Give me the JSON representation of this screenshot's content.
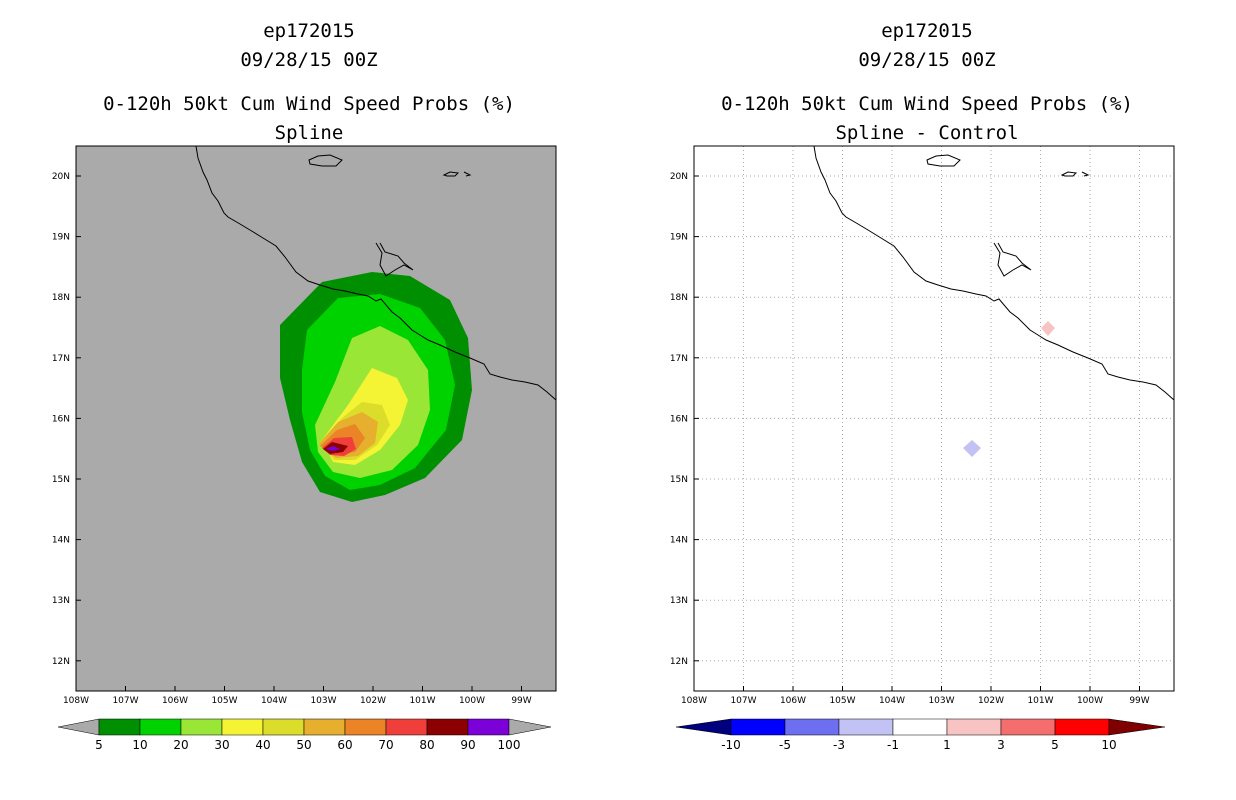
{
  "left": {
    "storm_id": "ep172015",
    "date": "09/28/15 00Z",
    "product": "0-120h 50kt Cum Wind Speed Probs (%)",
    "subtitle": "Spline",
    "lat_labels": [
      "20N",
      "19N",
      "18N",
      "17N",
      "16N",
      "15N",
      "14N",
      "13N",
      "12N"
    ],
    "lon_labels": [
      "108W",
      "107W",
      "106W",
      "105W",
      "104W",
      "103W",
      "102W",
      "101W",
      "100W",
      "99W"
    ],
    "colorbar": {
      "labels": [
        "5",
        "10",
        "20",
        "30",
        "40",
        "50",
        "60",
        "70",
        "80",
        "90",
        "100"
      ],
      "colors": [
        "#008f00",
        "#00d200",
        "#99e636",
        "#f4f435",
        "#dcdc2b",
        "#e6af2d",
        "#eb8327",
        "#f03f3a",
        "#8b0000",
        "#7c00d8"
      ],
      "extend_color": "#aaaaaa"
    }
  },
  "right": {
    "storm_id": "ep172015",
    "date": "09/28/15 00Z",
    "product": "0-120h 50kt Cum Wind Speed Probs (%)",
    "subtitle": "Spline - Control",
    "lat_labels": [
      "20N",
      "19N",
      "18N",
      "17N",
      "16N",
      "15N",
      "14N",
      "13N",
      "12N"
    ],
    "lon_labels": [
      "108W",
      "107W",
      "106W",
      "105W",
      "104W",
      "103W",
      "102W",
      "101W",
      "100W",
      "99W"
    ],
    "colorbar": {
      "labels": [
        "-10",
        "-5",
        "-3",
        "-1",
        "1",
        "3",
        "5",
        "10"
      ],
      "colors": [
        "#0000ff",
        "#6e6ef0",
        "#c2c2f4",
        "#ffffff",
        "#f7c3c3",
        "#f46e6e",
        "#ff0000"
      ],
      "low_color": "#00007f",
      "high_color": "#7f0000"
    }
  },
  "colors": {
    "land_mask": "#aaaaaa",
    "grid": "#aaaaaa"
  }
}
